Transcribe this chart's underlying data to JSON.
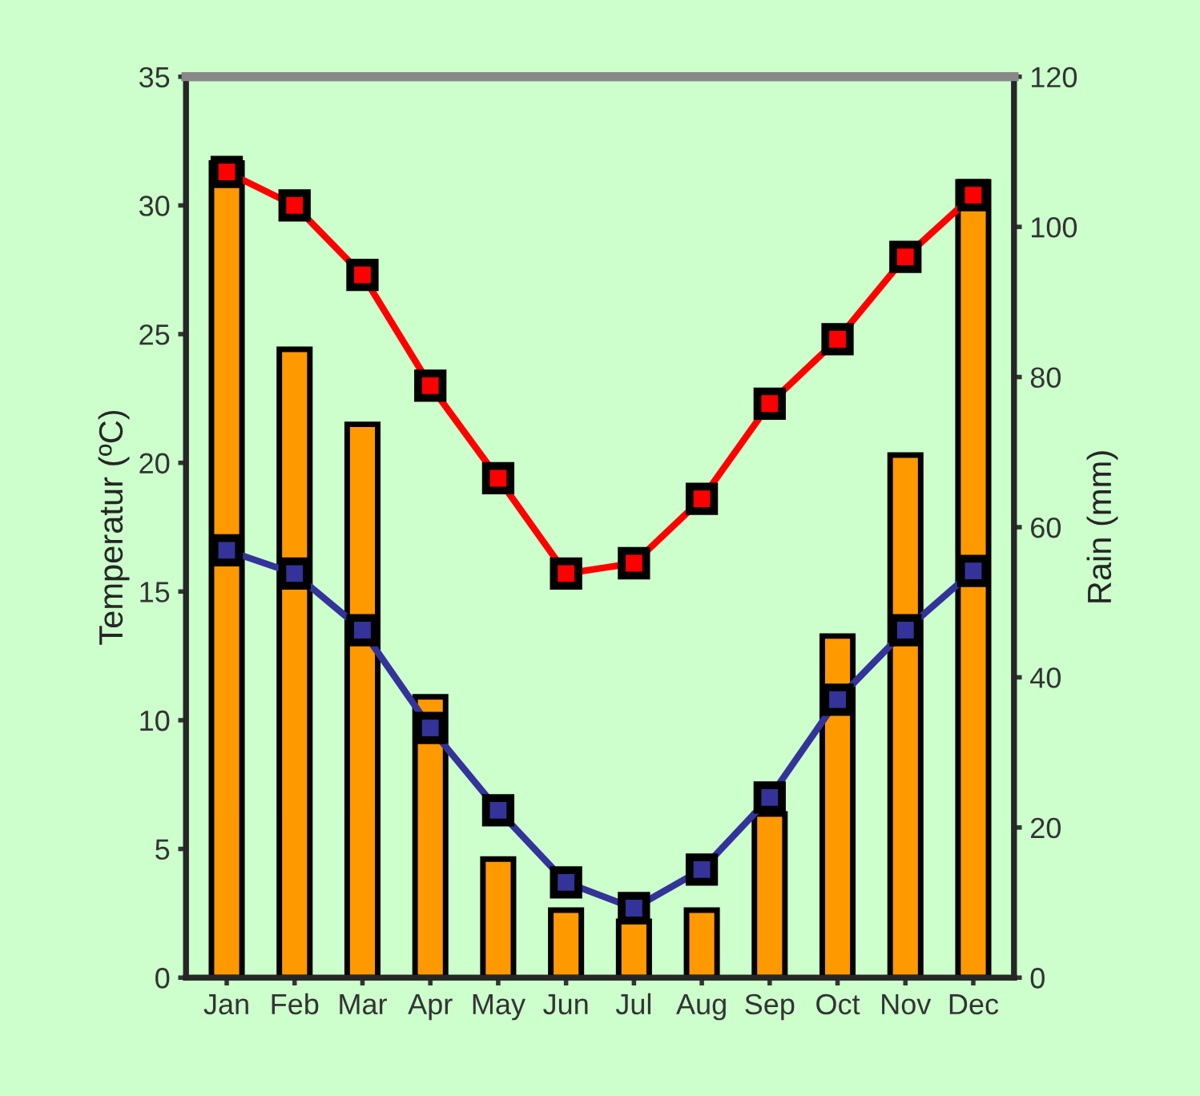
{
  "chart_data": {
    "type": "line",
    "ylabel": "Temperatur (ºC)",
    "y2label": "Rain (mm)",
    "categories": [
      "Jan",
      "Feb",
      "Mar",
      "Apr",
      "May",
      "Jun",
      "Jul",
      "Aug",
      "Sep",
      "Oct",
      "Nov",
      "Dec"
    ],
    "series": [
      {
        "type": "bar",
        "axis": "y2",
        "color": "#ff9900",
        "values": [
          108.5,
          83.7,
          73.7,
          37.4,
          15.8,
          9.0,
          7.5,
          9.0,
          21.8,
          45.5,
          69.6,
          106
        ]
      },
      {
        "color": "#ff0000",
        "values": [
          31.3,
          30.0,
          27.3,
          23.0,
          19.4,
          15.7,
          16.1,
          18.6,
          22.3,
          24.8,
          28.0,
          30.4
        ]
      },
      {
        "color": "#333399",
        "values": [
          16.6,
          15.7,
          13.5,
          9.7,
          6.5,
          3.7,
          2.7,
          4.2,
          7.0,
          10.8,
          13.5,
          15.8
        ]
      }
    ],
    "ylim": [
      0,
      35
    ],
    "yticks": [
      0,
      5,
      10,
      15,
      20,
      25,
      30,
      35
    ],
    "y2lim": [
      0,
      120
    ],
    "y2ticks": [
      0,
      20,
      40,
      60,
      80,
      100,
      120
    ],
    "marker": "square",
    "line_style": "solid",
    "grid": false,
    "legend": false
  }
}
